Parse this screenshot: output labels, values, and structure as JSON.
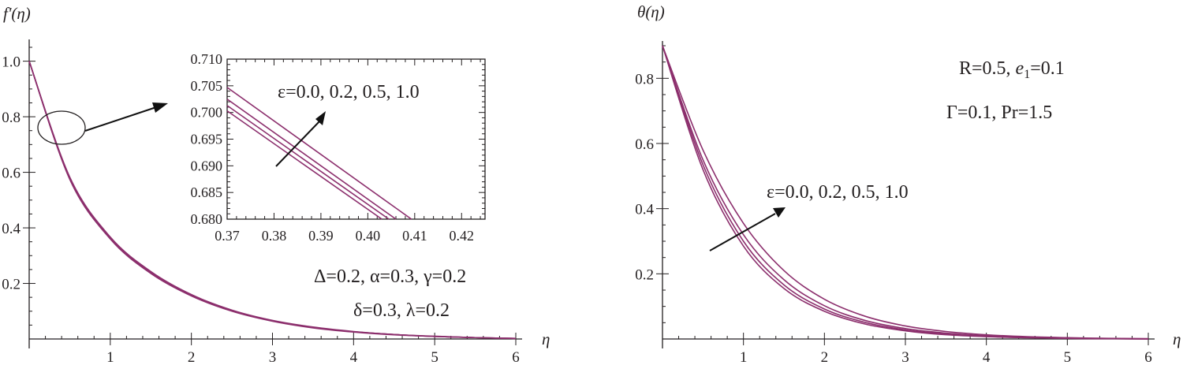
{
  "chart_data": [
    {
      "type": "line",
      "ylabel": "f'(η)",
      "xlabel": "η",
      "xlim": [
        0,
        6
      ],
      "ylim": [
        0,
        1.05
      ],
      "xticks": [
        "1",
        "2",
        "3",
        "4",
        "5",
        "6"
      ],
      "yticks": [
        "0.2",
        "0.4",
        "0.6",
        "0.8",
        "1.0"
      ],
      "series": [
        {
          "name": "ε=0.0",
          "x": [
            0,
            0.5,
            1,
            1.5,
            2,
            2.5,
            3,
            3.5,
            4,
            4.5,
            5,
            5.5,
            6
          ],
          "values": [
            1.0,
            0.575,
            0.36,
            0.236,
            0.155,
            0.1,
            0.064,
            0.04,
            0.025,
            0.015,
            0.009,
            0.005,
            0.002
          ]
        },
        {
          "name": "ε=0.2",
          "x": [
            0,
            0.5,
            1,
            1.5,
            2,
            2.5,
            3,
            3.5,
            4,
            4.5,
            5,
            5.5,
            6
          ],
          "values": [
            1.0,
            0.577,
            0.362,
            0.238,
            0.157,
            0.101,
            0.065,
            0.041,
            0.026,
            0.016,
            0.009,
            0.005,
            0.002
          ]
        },
        {
          "name": "ε=0.5",
          "x": [
            0,
            0.5,
            1,
            1.5,
            2,
            2.5,
            3,
            3.5,
            4,
            4.5,
            5,
            5.5,
            6
          ],
          "values": [
            1.0,
            0.579,
            0.364,
            0.24,
            0.158,
            0.102,
            0.066,
            0.042,
            0.026,
            0.016,
            0.009,
            0.005,
            0.002
          ]
        },
        {
          "name": "ε=1.0",
          "x": [
            0,
            0.5,
            1,
            1.5,
            2,
            2.5,
            3,
            3.5,
            4,
            4.5,
            5,
            5.5,
            6
          ],
          "values": [
            1.0,
            0.583,
            0.367,
            0.243,
            0.16,
            0.104,
            0.067,
            0.043,
            0.027,
            0.016,
            0.01,
            0.005,
            0.002
          ]
        }
      ],
      "annotations": {
        "line1": "Δ=0.2, α=0.3, γ=0.2",
        "line2": "δ=0.3, λ=0.2"
      },
      "inset": {
        "xlim": [
          0.37,
          0.425
        ],
        "ylim": [
          0.68,
          0.71
        ],
        "xticks": [
          "0.37",
          "0.38",
          "0.39",
          "0.40",
          "0.41",
          "0.42"
        ],
        "yticks": [
          "0.680",
          "0.685",
          "0.690",
          "0.695",
          "0.700",
          "0.705",
          "0.710"
        ],
        "label": "ε=0.0, 0.2, 0.5, 1.0",
        "series": [
          {
            "name": "ε=0.0",
            "x": [
              0.37,
              0.403
            ],
            "values": [
              0.7003,
              0.68
            ]
          },
          {
            "name": "ε=0.2",
            "x": [
              0.37,
              0.4045
            ],
            "values": [
              0.7013,
              0.68
            ]
          },
          {
            "name": "ε=0.5",
            "x": [
              0.37,
              0.406
            ],
            "values": [
              0.7025,
              0.68
            ]
          },
          {
            "name": "ε=1.0",
            "x": [
              0.37,
              0.4093
            ],
            "values": [
              0.7047,
              0.68
            ]
          }
        ]
      }
    },
    {
      "type": "line",
      "ylabel": "θ(η)",
      "xlabel": "η",
      "xlim": [
        0,
        6
      ],
      "ylim": [
        0,
        0.9
      ],
      "xticks": [
        "1",
        "2",
        "3",
        "4",
        "5",
        "6"
      ],
      "yticks": [
        "0.2",
        "0.4",
        "0.6",
        "0.8"
      ],
      "series": [
        {
          "name": "ε=0.0",
          "x": [
            0,
            0.5,
            1,
            1.5,
            2,
            2.5,
            3,
            3.5,
            4,
            4.5,
            5,
            5.5,
            6
          ],
          "values": [
            0.9,
            0.52,
            0.285,
            0.155,
            0.085,
            0.046,
            0.025,
            0.013,
            0.007,
            0.004,
            0.002,
            0.001,
            0.0
          ]
        },
        {
          "name": "ε=0.2",
          "x": [
            0,
            0.5,
            1,
            1.5,
            2,
            2.5,
            3,
            3.5,
            4,
            4.5,
            5,
            5.5,
            6
          ],
          "values": [
            0.9,
            0.535,
            0.3,
            0.166,
            0.092,
            0.051,
            0.028,
            0.015,
            0.008,
            0.004,
            0.002,
            0.001,
            0.0
          ]
        },
        {
          "name": "ε=0.5",
          "x": [
            0,
            0.5,
            1,
            1.5,
            2,
            2.5,
            3,
            3.5,
            4,
            4.5,
            5,
            5.5,
            6
          ],
          "values": [
            0.9,
            0.55,
            0.32,
            0.182,
            0.102,
            0.057,
            0.032,
            0.018,
            0.01,
            0.005,
            0.003,
            0.001,
            0.0
          ]
        },
        {
          "name": "ε=1.0",
          "x": [
            0,
            0.5,
            1,
            1.5,
            2,
            2.5,
            3,
            3.5,
            4,
            4.5,
            5,
            5.5,
            6
          ],
          "values": [
            0.9,
            0.58,
            0.355,
            0.21,
            0.122,
            0.07,
            0.04,
            0.023,
            0.013,
            0.007,
            0.004,
            0.002,
            0.001
          ]
        }
      ],
      "annotations": {
        "params1_r": "R=0.5, ",
        "params1_e": "e",
        "params1_sub": "1",
        "params1_tail": "=0.1",
        "params2": "Γ=0.1, Pr=1.5",
        "label": "ε=0.0, 0.2, 0.5, 1.0"
      }
    }
  ],
  "colors": {
    "curve": "#8c2f6d",
    "axis": "#231f20"
  }
}
